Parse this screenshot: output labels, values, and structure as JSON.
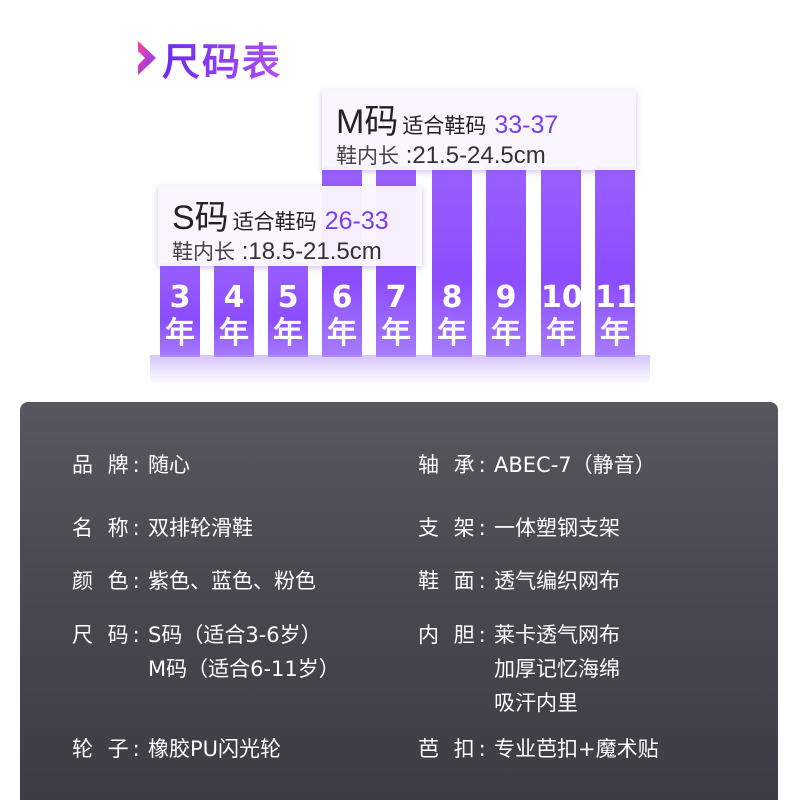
{
  "header": {
    "title": "尺码表"
  },
  "bars": {
    "labels": [
      {
        "num": "3",
        "unit": "年"
      },
      {
        "num": "4",
        "unit": "年"
      },
      {
        "num": "5",
        "unit": "年"
      },
      {
        "num": "6",
        "unit": "年"
      },
      {
        "num": "7",
        "unit": "年"
      },
      {
        "num": "8",
        "unit": "年"
      },
      {
        "num": "9",
        "unit": "年"
      },
      {
        "num": "10",
        "unit": "年"
      },
      {
        "num": "11",
        "unit": "年"
      }
    ]
  },
  "size_m": {
    "code": "M码",
    "fit": "适合鞋码",
    "range": "33-37",
    "length_label": "鞋内长",
    "length_value": ":21.5-24.5cm"
  },
  "size_s": {
    "code": "S码",
    "fit": "适合鞋码",
    "range": "26-33",
    "length_label": "鞋内长",
    "length_value": ":18.5-21.5cm"
  },
  "specs": {
    "brand": {
      "key": "品 牌:",
      "value": "随心"
    },
    "bearing": {
      "key": "轴 承:",
      "value": "ABEC-7（静音）"
    },
    "name": {
      "key": "名 称:",
      "value": "双排轮滑鞋"
    },
    "bracket": {
      "key": "支 架:",
      "value": "一体塑钢支架"
    },
    "color": {
      "key": "颜 色:",
      "value": "紫色、蓝色、粉色"
    },
    "upper": {
      "key": "鞋 面:",
      "value": "透气编织网布"
    },
    "size": {
      "key": "尺 码:",
      "value1": "S码（适合3-6岁）",
      "value2": "M码（适合6-11岁）"
    },
    "liner": {
      "key": "内 胆:",
      "value1": "莱卡透气网布",
      "value2": "加厚记忆海绵",
      "value3": "吸汗内里"
    },
    "wheel": {
      "key": "轮 子:",
      "value": "橡胶PU闪光轮"
    },
    "buckle": {
      "key": "芭 扣:",
      "value": "专业芭扣+魔术贴"
    }
  },
  "colors": {
    "accent": "#8c4cff",
    "panel": "#4a4850"
  },
  "icons": {
    "title": "chevron-right-icon"
  }
}
